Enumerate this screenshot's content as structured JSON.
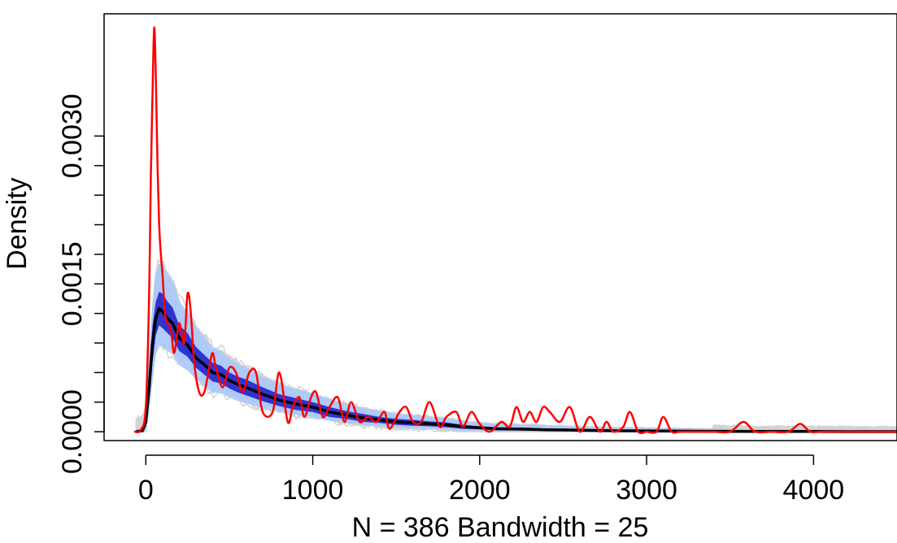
{
  "chart_data": {
    "type": "line",
    "title": "",
    "xlabel": "N = 386 Bandwidth = 25",
    "ylabel": "Density",
    "xlim": [
      -250,
      4500
    ],
    "ylim": [
      -9e-05,
      0.00424
    ],
    "x_ticks": [
      0,
      1000,
      2000,
      3000,
      4000
    ],
    "x_tick_labels": [
      "0",
      "1000",
      "2000",
      "3000",
      "4000"
    ],
    "y_ticks": [
      0,
      0.0003,
      0.0006,
      0.0009,
      0.0012,
      0.0015,
      0.0018,
      0.0021,
      0.0024,
      0.0027,
      0.003
    ],
    "y_tick_labels": [
      "0.0000",
      "",
      "",
      "",
      "",
      "0.0015",
      "",
      "",
      "",
      "",
      "0.0030"
    ],
    "grid": false,
    "legend": "none",
    "colors": {
      "observed": "#ff0000",
      "mean": "#000000",
      "band_inner": "#2222cc",
      "band_outer": "#a6c8ff",
      "simulations": "#d3d3d3"
    },
    "series": [
      {
        "role": "observed",
        "x": [
          -70,
          -30,
          0,
          20,
          30,
          40,
          50,
          60,
          70,
          80,
          90,
          100,
          115,
          130,
          150,
          170,
          200,
          230,
          250,
          270,
          290,
          320,
          350,
          380,
          400,
          420,
          460,
          500,
          540,
          580,
          620,
          660,
          700,
          760,
          800,
          850,
          880,
          920,
          950,
          990,
          1020,
          1060,
          1100,
          1150,
          1190,
          1230,
          1280,
          1330,
          1380,
          1430,
          1460,
          1520,
          1560,
          1600,
          1650,
          1700,
          1760,
          1800,
          1860,
          1900,
          1950,
          2000,
          2060,
          2130,
          2180,
          2220,
          2260,
          2300,
          2340,
          2380,
          2420,
          2480,
          2540,
          2600,
          2660,
          2720,
          2760,
          2800,
          2860,
          2900,
          2950,
          3000,
          3060,
          3100,
          3150,
          3200,
          3300,
          3400,
          3500,
          3580,
          3650,
          3750,
          3850,
          3920,
          3980,
          4050,
          4200,
          4350,
          4500
        ],
        "y": [
          0,
          2e-05,
          0.00025,
          0.0014,
          0.0026,
          0.0034,
          0.0041,
          0.0036,
          0.0027,
          0.0021,
          0.0018,
          0.0016,
          0.0012,
          0.0011,
          0.00105,
          0.0008,
          0.0011,
          0.0009,
          0.0014,
          0.0012,
          0.0007,
          0.0004,
          0.0004,
          0.00065,
          0.0008,
          0.00065,
          0.00045,
          0.00065,
          0.0006,
          0.0004,
          0.0006,
          0.0006,
          0.0002,
          0.0002,
          0.0006,
          0.0001,
          0.00025,
          0.00035,
          0.00015,
          0.00035,
          0.0004,
          0.00015,
          0.00025,
          0.00035,
          0.0001,
          0.0003,
          0.0001,
          0.00015,
          0.0001,
          0.0002,
          3e-05,
          0.0002,
          0.00025,
          0.0001,
          0.0001,
          0.0003,
          5e-05,
          0.00015,
          0.0002,
          5e-05,
          0.0002,
          8e-05,
          0.0,
          0.0001,
          5e-05,
          0.00025,
          0.0001,
          0.0002,
          0.0001,
          0.00025,
          0.0002,
          0.0001,
          0.00025,
          0.0,
          0.00015,
          0.0,
          0.0001,
          0.0,
          5e-05,
          0.0002,
          0.0,
          0.0,
          0.0,
          0.00015,
          0.0,
          0.0,
          0.0,
          0.0,
          0.0,
          0.0001,
          0.0,
          0.0,
          0.0,
          8e-05,
          0.0,
          0.0,
          0.0,
          0.0,
          0.0
        ]
      },
      {
        "role": "mean",
        "x": [
          -60,
          -20,
          0,
          20,
          40,
          60,
          80,
          100,
          130,
          160,
          200,
          250,
          300,
          350,
          400,
          450,
          500,
          550,
          600,
          700,
          800,
          900,
          1000,
          1100,
          1200,
          1300,
          1400,
          1500,
          1600,
          1700,
          1800,
          1900,
          2000,
          2100,
          2200,
          2300,
          2400,
          2500,
          2600,
          2700,
          2800,
          2900,
          3000,
          3100,
          3200,
          3300,
          3400,
          3600,
          3800,
          4000,
          4200,
          4500
        ],
        "y": [
          0,
          1e-05,
          0.0001,
          0.00045,
          0.0009,
          0.00115,
          0.00125,
          0.00122,
          0.00115,
          0.0011,
          0.00095,
          0.00088,
          0.00075,
          0.00068,
          0.0006,
          0.00058,
          0.00052,
          0.00048,
          0.00045,
          0.00038,
          0.00032,
          0.00028,
          0.00025,
          0.0002,
          0.00017,
          0.00014,
          0.00012,
          0.0001,
          9e-05,
          8e-05,
          7e-05,
          5e-05,
          4e-05,
          3e-05,
          2.8e-05,
          2.5e-05,
          2e-05,
          1.8e-05,
          1.5e-05,
          1.2e-05,
          1e-05,
          9e-06,
          8e-06,
          7e-06,
          6e-06,
          5e-06,
          4e-06,
          3e-06,
          2e-06,
          2e-06,
          1e-06,
          1e-06
        ]
      }
    ],
    "band": {
      "x": [
        -60,
        -20,
        0,
        20,
        40,
        60,
        80,
        100,
        130,
        160,
        200,
        250,
        300,
        350,
        400,
        450,
        500,
        550,
        600,
        700,
        800,
        900,
        1000,
        1100,
        1200,
        1300,
        1400,
        1500,
        1600,
        1700,
        1800,
        1900,
        2000,
        2100,
        2200,
        2300,
        2400,
        2500,
        2600,
        2700,
        2800,
        2900,
        3000,
        3100,
        3200,
        3300,
        3400,
        3600,
        3800,
        4000,
        4200,
        4500
      ],
      "inner_lower": [
        0,
        0,
        5e-05,
        0.0003,
        0.0007,
        0.00098,
        0.00108,
        0.00105,
        0.001,
        0.00095,
        0.00082,
        0.00076,
        0.00065,
        0.00058,
        0.00051,
        0.00049,
        0.00044,
        0.0004,
        0.00037,
        0.00031,
        0.00026,
        0.00022,
        0.0002,
        0.00015,
        0.00013,
        0.0001,
        9e-05,
        7e-05,
        6e-05,
        5.5e-05,
        4.5e-05,
        3e-05,
        2.5e-05,
        1.5e-05,
        1.3e-05,
        1.1e-05,
        8e-06,
        7e-06,
        5e-06,
        4e-06,
        3e-06,
        2e-06,
        2e-06,
        1e-06,
        1e-06,
        1e-06,
        0,
        0,
        0,
        0,
        0,
        0
      ],
      "inner_upper": [
        0,
        3e-05,
        0.00018,
        0.0006,
        0.00108,
        0.00132,
        0.00142,
        0.0014,
        0.00132,
        0.00126,
        0.00108,
        0.001,
        0.00086,
        0.00078,
        0.0007,
        0.00067,
        0.0006,
        0.00056,
        0.00053,
        0.00045,
        0.00038,
        0.00034,
        0.0003,
        0.00025,
        0.00021,
        0.00018,
        0.00015,
        0.00013,
        0.00012,
        0.000105,
        9.5e-05,
        7e-05,
        5.5e-05,
        4.5e-05,
        4.3e-05,
        4e-05,
        3.2e-05,
        3e-05,
        2.5e-05,
        2e-05,
        1.7e-05,
        1.6e-05,
        1.4e-05,
        1.3e-05,
        1.1e-05,
        1e-05,
        8e-06,
        6e-06,
        4e-06,
        4e-06,
        2e-06,
        2e-06
      ],
      "outer_lower": [
        0,
        0,
        2e-05,
        0.0002,
        0.0005,
        0.0008,
        0.00088,
        0.00086,
        0.00082,
        0.00078,
        0.00068,
        0.00062,
        0.00053,
        0.00046,
        0.0004,
        0.00039,
        0.00035,
        0.00031,
        0.00029,
        0.00024,
        0.0002,
        0.00017,
        0.00015,
        0.00011,
        9e-05,
        7e-05,
        6e-05,
        4e-05,
        3e-05,
        3e-05,
        2e-05,
        1e-05,
        1e-05,
        5e-06,
        4e-06,
        3e-06,
        2e-06,
        1e-06,
        1e-06,
        0,
        0,
        0,
        0,
        0,
        0,
        0,
        0,
        0,
        0,
        0,
        0,
        0
      ],
      "outer_upper": [
        0,
        5e-05,
        0.0003,
        0.0008,
        0.0013,
        0.0016,
        0.0017,
        0.00168,
        0.0016,
        0.00152,
        0.00132,
        0.00122,
        0.00106,
        0.00096,
        0.00086,
        0.00082,
        0.00074,
        0.00069,
        0.00065,
        0.00056,
        0.00048,
        0.00043,
        0.00039,
        0.00033,
        0.00028,
        0.00024,
        0.00021,
        0.00018,
        0.00017,
        0.00015,
        0.00014,
        0.00011,
        9e-05,
        8e-05,
        7.5e-05,
        7e-05,
        6e-05,
        5.5e-05,
        5e-05,
        4.5e-05,
        4e-05,
        4e-05,
        3.8e-05,
        3.6e-05,
        3.4e-05,
        3.2e-05,
        3e-05,
        2.8e-05,
        2.6e-05,
        2.5e-05,
        2.4e-05,
        2.2e-05
      ]
    },
    "simulations": {
      "count": 60,
      "x_range": [
        -60,
        4500
      ],
      "peak_range": [
        0.0009,
        0.002
      ],
      "description": "bootstrap density curves (light gray)"
    }
  }
}
